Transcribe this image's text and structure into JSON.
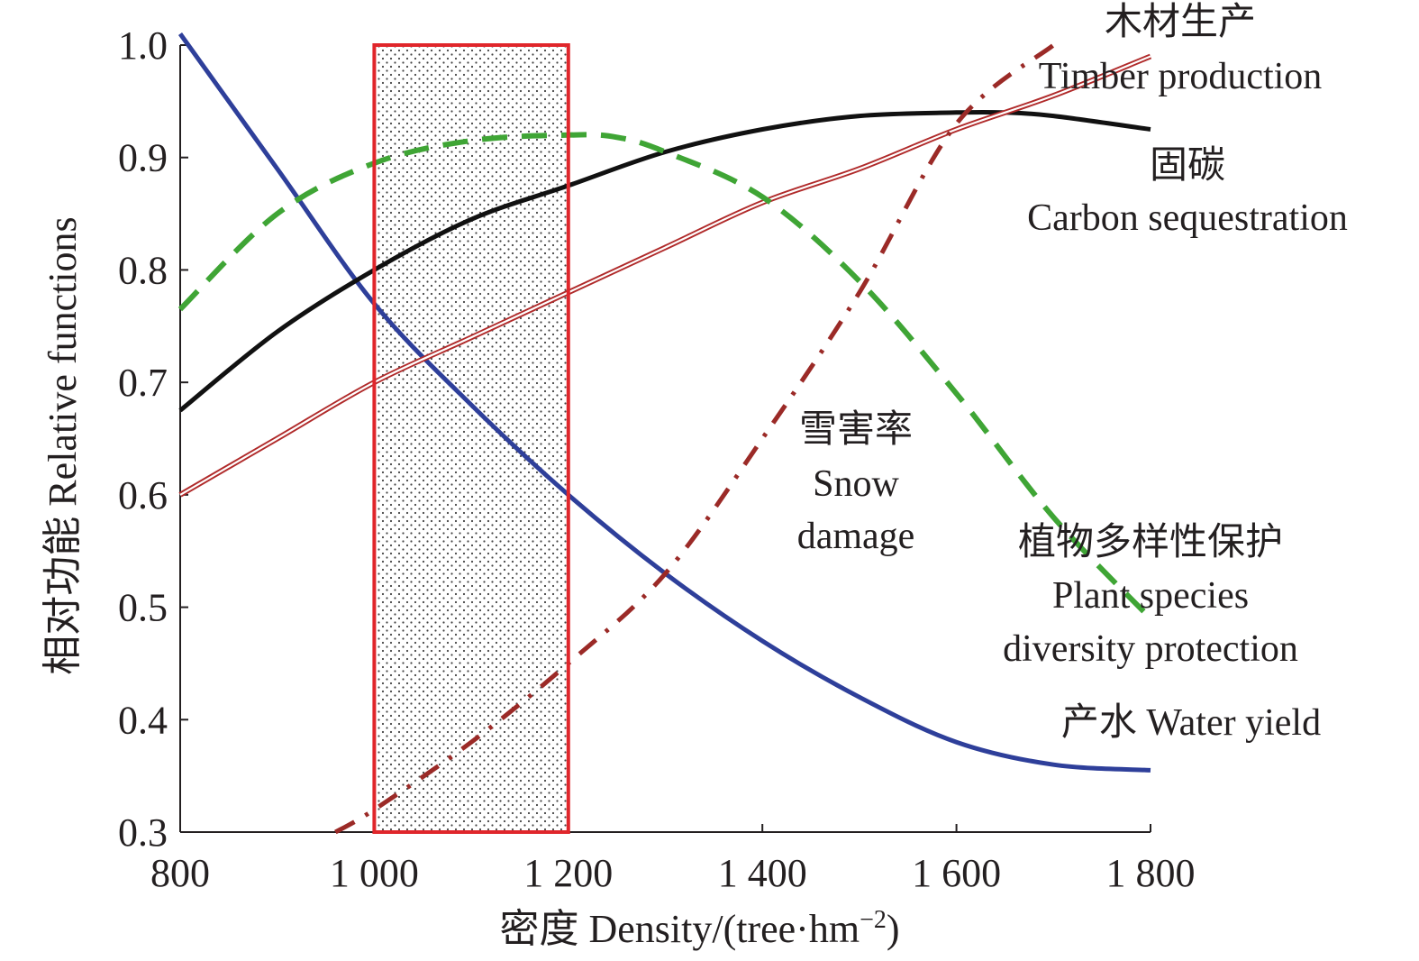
{
  "chart_data": {
    "type": "line",
    "xlabel": "密度 Density/(tree·hm",
    "xlabel_sup": "−2",
    "xlabel_close": ")",
    "ylabel": "相对功能 Relative functions",
    "xlim": [
      800,
      1800
    ],
    "ylim": [
      0.3,
      1.0
    ],
    "x_ticks": [
      800,
      1000,
      1200,
      1400,
      1600,
      1800
    ],
    "x_tick_labels": [
      "800",
      "1 000",
      "1 200",
      "1 400",
      "1 600",
      "1 800"
    ],
    "y_ticks": [
      0.3,
      0.4,
      0.5,
      0.6,
      0.7,
      0.8,
      0.9,
      1.0
    ],
    "y_tick_labels": [
      "0.3",
      "0.4",
      "0.5",
      "0.6",
      "0.7",
      "0.8",
      "0.9",
      "1.0"
    ],
    "grid": false,
    "highlight_range": [
      1000,
      1200
    ],
    "series": [
      {
        "id": "water",
        "labels": [
          "产水 Water yield"
        ],
        "color": "#2e3f9a",
        "style": "solid",
        "x": [
          800,
          900,
          1000,
          1100,
          1200,
          1300,
          1400,
          1500,
          1600,
          1700,
          1800
        ],
        "y": [
          1.01,
          0.89,
          0.77,
          0.68,
          0.6,
          0.53,
          0.47,
          0.42,
          0.38,
          0.36,
          0.355
        ]
      },
      {
        "id": "carbon",
        "labels": [
          "固碳",
          "Carbon sequestration"
        ],
        "color": "#111111",
        "style": "solid",
        "x": [
          800,
          900,
          1000,
          1100,
          1200,
          1300,
          1400,
          1500,
          1600,
          1650,
          1700,
          1800
        ],
        "y": [
          0.675,
          0.745,
          0.8,
          0.845,
          0.875,
          0.905,
          0.925,
          0.937,
          0.94,
          0.94,
          0.937,
          0.925
        ]
      },
      {
        "id": "timber",
        "labels": [
          "木材生产",
          "Timber production"
        ],
        "color": "#b02a2a",
        "style": "double",
        "x": [
          800,
          900,
          1000,
          1100,
          1200,
          1300,
          1400,
          1500,
          1600,
          1700,
          1800
        ],
        "y": [
          0.6,
          0.65,
          0.7,
          0.74,
          0.78,
          0.82,
          0.86,
          0.89,
          0.925,
          0.955,
          0.99
        ]
      },
      {
        "id": "diversity",
        "labels": [
          "植物多样性保护",
          "Plant species",
          "diversity protection"
        ],
        "color": "#3fa535",
        "style": "dashed",
        "x": [
          800,
          900,
          1000,
          1100,
          1200,
          1250,
          1300,
          1400,
          1500,
          1600,
          1700,
          1800
        ],
        "y": [
          0.765,
          0.85,
          0.895,
          0.915,
          0.92,
          0.918,
          0.905,
          0.865,
          0.79,
          0.69,
          0.58,
          0.49
        ]
      },
      {
        "id": "snow",
        "labels": [
          "雪害率",
          "Snow",
          "damage"
        ],
        "color": "#9b2a27",
        "style": "dashdot",
        "x": [
          960,
          1000,
          1100,
          1200,
          1300,
          1400,
          1500,
          1600,
          1700
        ],
        "y": [
          0.3,
          0.32,
          0.38,
          0.45,
          0.53,
          0.65,
          0.78,
          0.93,
          1.0
        ]
      }
    ]
  }
}
